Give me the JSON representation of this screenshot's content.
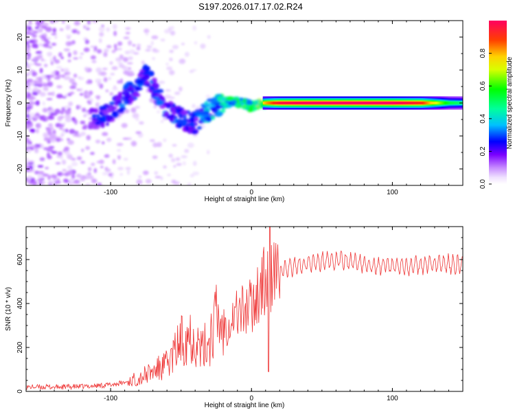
{
  "title": "S197.2026.017.17.02.R24",
  "chart_data": [
    {
      "type": "heatmap",
      "xlabel": "Height of straight line (km)",
      "ylabel": "Frequency (Hz)",
      "xlim": [
        -160,
        150
      ],
      "ylim": [
        -25,
        25
      ],
      "xticks": [
        -100,
        0,
        100
      ],
      "xtick_labels": [
        "-100",
        "0",
        "100"
      ],
      "yticks": [
        -20,
        -10,
        0,
        10,
        20
      ],
      "ytick_labels": [
        "-20",
        "-10",
        "0",
        "10",
        "20"
      ],
      "colorbar": {
        "label": "Normalized spectral amplitude",
        "range": [
          0,
          1
        ],
        "ticks": [
          0,
          0.2,
          0.4,
          0.6,
          0.8
        ],
        "tick_labels": [
          "0.0",
          "0.2",
          "0.4",
          "0.6",
          "0.8"
        ]
      },
      "ridge": {
        "description_points_x": [
          -110,
          -100,
          -90,
          -80,
          -75,
          -70,
          -60,
          -50,
          -40,
          -30,
          -20,
          -10,
          0,
          10,
          20,
          40,
          60,
          80,
          100,
          120,
          140,
          150
        ],
        "description_points_y": [
          -5,
          -3,
          2,
          5,
          9,
          5,
          -2,
          -5,
          -6,
          -2,
          0,
          0.5,
          -1,
          0,
          0,
          0,
          0,
          0,
          0,
          0,
          0,
          0
        ],
        "peak_amplitude": [
          0.25,
          0.3,
          0.3,
          0.3,
          0.3,
          0.3,
          0.3,
          0.3,
          0.3,
          0.4,
          0.5,
          0.55,
          0.6,
          0.8,
          0.95,
          1.0,
          1.0,
          1.0,
          1.0,
          0.9,
          0.5,
          0.45
        ]
      }
    },
    {
      "type": "line",
      "xlabel": "Height of straight line (km)",
      "ylabel": "SNR (10 * v/v)",
      "xlim": [
        -160,
        150
      ],
      "ylim": [
        0,
        750
      ],
      "xticks": [
        -100,
        0,
        100
      ],
      "xtick_labels": [
        "-100",
        "0",
        "100"
      ],
      "yticks": [
        0,
        200,
        400,
        600
      ],
      "ytick_labels": [
        "0",
        "200",
        "400",
        "600"
      ],
      "series": [
        {
          "name": "SNR",
          "color": "#ee3333",
          "x": [
            -160,
            -140,
            -120,
            -100,
            -90,
            -80,
            -70,
            -60,
            -55,
            -50,
            -45,
            -40,
            -35,
            -30,
            -25,
            -20,
            -15,
            -10,
            -5,
            0,
            5,
            10,
            15,
            20,
            25,
            30,
            40,
            50,
            60,
            70,
            80,
            90,
            100,
            110,
            120,
            130,
            140,
            150
          ],
          "y": [
            20,
            20,
            22,
            30,
            40,
            60,
            90,
            120,
            170,
            230,
            270,
            240,
            180,
            240,
            330,
            300,
            330,
            360,
            370,
            390,
            460,
            500,
            520,
            540,
            560,
            570,
            580,
            590,
            600,
            590,
            580,
            570,
            575,
            570,
            575,
            580,
            580,
            575
          ]
        }
      ],
      "annotations": {
        "spike_max_at_x": 13,
        "dip_min_at_x": 12,
        "dip_min_value": 90
      }
    }
  ]
}
